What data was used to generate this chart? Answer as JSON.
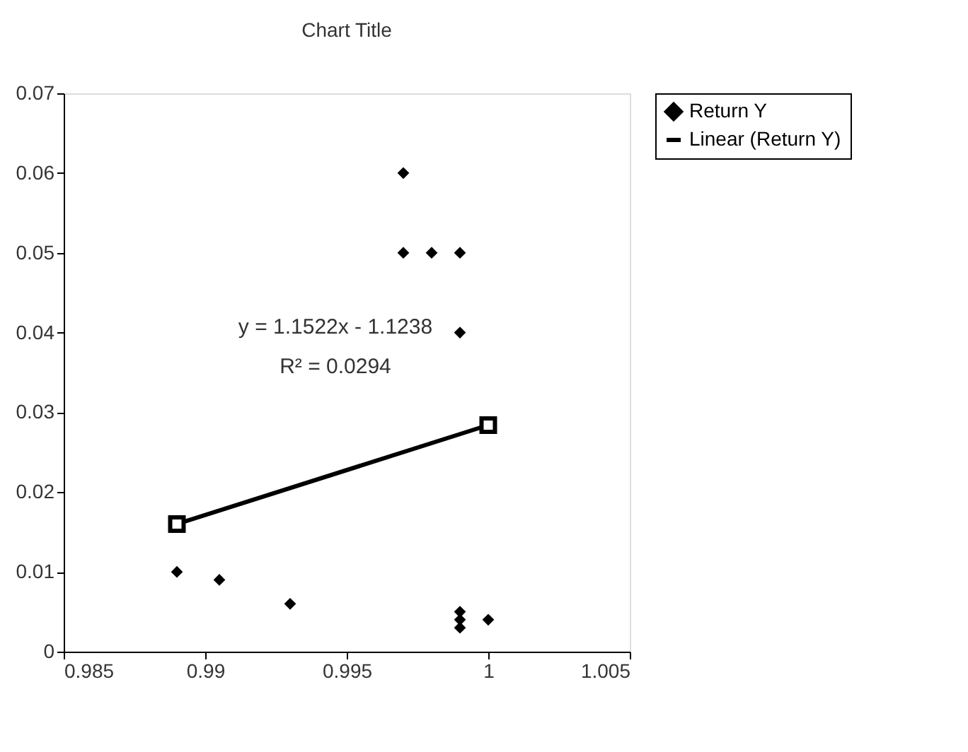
{
  "chart_data": {
    "type": "scatter",
    "title": "Chart Title",
    "series": [
      {
        "name": "Return Y",
        "color": "#000000",
        "marker": "diamond",
        "x": [
          0.989,
          0.9905,
          0.993,
          0.997,
          0.997,
          0.998,
          0.999,
          0.999,
          0.999,
          0.999,
          0.999,
          1.0
        ],
        "values": [
          0.01,
          0.009,
          0.006,
          0.06,
          0.05,
          0.05,
          0.05,
          0.04,
          0.005,
          0.004,
          0.003,
          0.004
        ]
      },
      {
        "name": "Linear (Return Y)",
        "type": "line",
        "color": "#000000",
        "marker": "square",
        "x": [
          0.989,
          1.0
        ],
        "values": [
          0.016,
          0.0284
        ]
      }
    ],
    "annotations": [
      "y = 1.1522x - 1.1238",
      "R² = 0.0294"
    ],
    "xlim": [
      0.985,
      1.005
    ],
    "xticks": [
      0.985,
      0.99,
      0.995,
      1,
      1.005
    ],
    "ylim": [
      0,
      0.07
    ],
    "yticks": [
      0,
      0.01,
      0.02,
      0.03,
      0.04,
      0.05,
      0.06,
      0.07
    ],
    "grid": false,
    "legend": "right"
  }
}
